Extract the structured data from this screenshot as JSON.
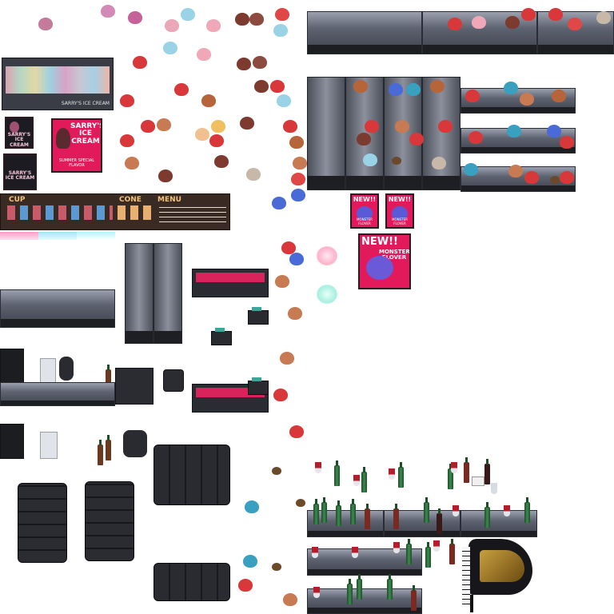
{
  "sheet": {
    "background": "#ffffff",
    "accent_pink": "#e21a5c",
    "counter_gray": "#5d6270",
    "furniture_black": "#222226"
  },
  "display_case": {
    "label": "SARRY'S ICE CREAM"
  },
  "sign_small": {
    "title": "SARRY'S ICE CREAM"
  },
  "poster_main": {
    "title": "SARRY'S ICE CREAM",
    "subtitle": "SUMMER SPECIAL FLAVOR"
  },
  "menu_board": {
    "cup_heading": "CUP",
    "cone_heading": "CONE",
    "menu_heading": "MENU"
  },
  "promo_small": {
    "line1": "NEW!!",
    "line2": "MONSTER FLOVER"
  },
  "promo_large": {
    "line1": "NEW!!",
    "line2": "MONSTER FLOVER"
  },
  "icons": [
    "ice-cream-cup-icon",
    "shaved-ice-icon",
    "cupcake-icon",
    "parfait-icon",
    "wine-bottle-icon",
    "wine-glass-icon",
    "coffee-cup-icon",
    "cash-register-icon",
    "grand-piano-icon"
  ]
}
